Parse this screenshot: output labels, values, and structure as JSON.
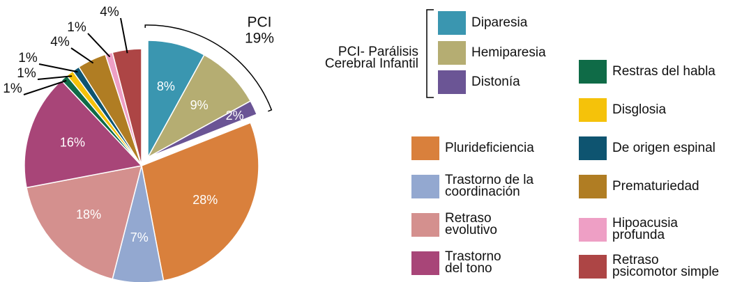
{
  "chart_data": {
    "type": "pie",
    "categories": [
      "Diparesia",
      "Hemiparesia",
      "Distonía",
      "Plurideficiencia",
      "Trastorno de la\ncoordinación",
      "Retraso\nevolutivo",
      "Trastorno\ndel tono",
      "Restras del habla",
      "Disglosia",
      "De origen espinal",
      "Prematuriedad",
      "Hipoacusia\nprofunda",
      "Retraso\npsicomotor simple"
    ],
    "values": [
      8,
      9,
      2,
      28,
      7,
      18,
      16,
      1,
      1,
      1,
      4,
      1,
      4
    ],
    "value_labels": [
      "8%",
      "9%",
      "2%",
      "28%",
      "7%",
      "18%",
      "16%",
      "1%",
      "1%",
      "1%",
      "4%",
      "1%",
      "4%"
    ],
    "colors": [
      "#3a96b0",
      "#b5ad72",
      "#6b5595",
      "#d9803c",
      "#93a8d0",
      "#d4908e",
      "#a84578",
      "#0f6b47",
      "#f5c20a",
      "#0e5470",
      "#b07d23",
      "#ee9fc5",
      "#ad4545"
    ],
    "group": {
      "name": "PCI",
      "value": 19,
      "value_label": "19%",
      "legend_title": "PCI- Parálisis\nCerebral Infantil",
      "members": [
        0,
        1,
        2
      ]
    }
  }
}
